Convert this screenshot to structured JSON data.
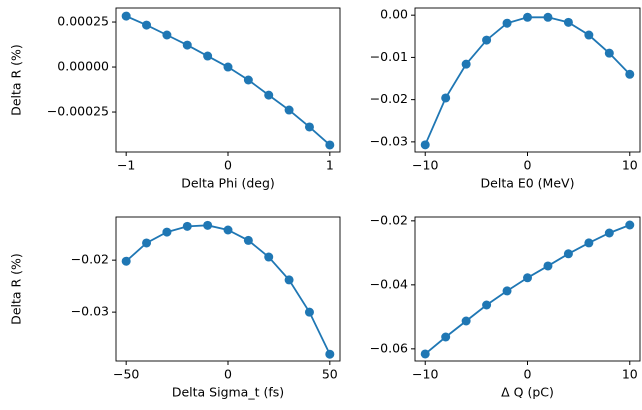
{
  "chart_data": [
    {
      "type": "line",
      "xlabel": "Delta Phi (deg)",
      "ylabel": "Delta R (%)",
      "color": "#1f77b4",
      "x": [
        -1,
        -0.8,
        -0.6,
        -0.4,
        -0.2,
        0,
        0.2,
        0.4,
        0.6,
        0.8,
        1
      ],
      "values": [
        0.000283,
        0.000233,
        0.000178,
        0.000122,
        6.1e-05,
        0,
        -7.2e-05,
        -0.000156,
        -0.000239,
        -0.000333,
        -0.000433
      ],
      "xlim": [
        -1.1,
        1.1
      ],
      "xticks": [
        {
          "value": -1,
          "label": "−1"
        },
        0,
        1
      ],
      "ylim": [
        -0.000472,
        0.000328
      ],
      "yticks": [
        {
          "value": -0.00025,
          "label": "−0.00025"
        },
        {
          "value": 0,
          "label": "0.00000"
        },
        {
          "value": 0.00025,
          "label": "0.00025"
        }
      ]
    },
    {
      "type": "line",
      "xlabel": "Delta E0 (MeV)",
      "color": "#1f77b4",
      "x": [
        -10,
        -8,
        -6,
        -4,
        -2,
        0,
        2,
        4,
        6,
        8,
        10
      ],
      "values": [
        -0.0307,
        -0.0196,
        -0.0116,
        -0.0059,
        -0.0019,
        -0.0005,
        -0.0005,
        -0.0017,
        -0.0047,
        -0.009,
        -0.014
      ],
      "xlim": [
        -11,
        11
      ],
      "xticks": [
        {
          "value": -10,
          "label": "−10"
        },
        0,
        10
      ],
      "ylim": [
        -0.0324,
        0.0017
      ],
      "yticks": [
        {
          "value": -0.03,
          "label": "−0.03"
        },
        {
          "value": -0.02,
          "label": "−0.02"
        },
        {
          "value": -0.01,
          "label": "−0.01"
        },
        {
          "value": 0,
          "label": "0.00"
        }
      ]
    },
    {
      "type": "line",
      "xlabel": "Delta Sigma_t (fs)",
      "ylabel": "Delta R (%)",
      "color": "#1f77b4",
      "x": [
        -50,
        -40,
        -30,
        -20,
        -10,
        0,
        10,
        20,
        30,
        40,
        50
      ],
      "values": [
        -0.0202,
        -0.0167,
        -0.0146,
        -0.0135,
        -0.0133,
        -0.0142,
        -0.0162,
        -0.0194,
        -0.0238,
        -0.03,
        -0.0381
      ],
      "xlim": [
        -55,
        55
      ],
      "xticks": [
        {
          "value": -50,
          "label": "−50"
        },
        0,
        50
      ],
      "ylim": [
        -0.0394,
        -0.0117
      ],
      "yticks": [
        {
          "value": -0.03,
          "label": "−0.03"
        },
        {
          "value": -0.02,
          "label": "−0.02"
        }
      ]
    },
    {
      "type": "line",
      "xlabel": "Δ Q (pC)",
      "color": "#1f77b4",
      "x": [
        -10,
        -8,
        -6,
        -4,
        -2,
        0,
        2,
        4,
        6,
        8,
        10
      ],
      "values": [
        -0.0616,
        -0.0563,
        -0.0513,
        -0.0463,
        -0.0419,
        -0.0378,
        -0.0341,
        -0.0303,
        -0.0269,
        -0.0238,
        -0.0213
      ],
      "xlim": [
        -11,
        11
      ],
      "xticks": [
        {
          "value": -10,
          "label": "−10"
        },
        0,
        10
      ],
      "ylim": [
        -0.0638,
        -0.0188
      ],
      "yticks": [
        {
          "value": -0.06,
          "label": "−0.06"
        },
        {
          "value": -0.04,
          "label": "−0.04"
        },
        {
          "value": -0.02,
          "label": "−0.02"
        }
      ]
    }
  ]
}
